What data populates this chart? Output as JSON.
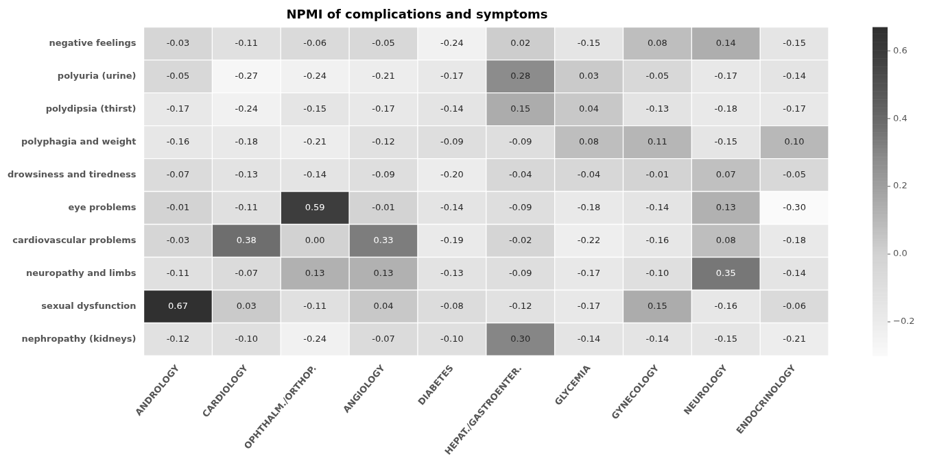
{
  "chart_data": {
    "type": "heatmap",
    "title": "NPMI of complications and symptoms",
    "categories": [
      "ANDROLOGY",
      "CARDIOLOGY",
      "OPHTHALM./ORTHOP.",
      "ANGIOLOGY",
      "DIABETES",
      "HEPAT./GASTROENTER.",
      "GLYCEMIA",
      "GYNECOLOGY",
      "NEUROLOGY",
      "ENDOCRINOLOGY"
    ],
    "y_categories": [
      "negative feelings",
      "polyuria (urine)",
      "polydipsia (thirst)",
      "polyphagia and weight",
      "drowsiness and tiredness",
      "eye problems",
      "cardiovascular problems",
      "neuropathy and limbs",
      "sexual dysfunction",
      "nephropathy (kidneys)"
    ],
    "cells": [
      [
        -0.03,
        -0.11,
        -0.06,
        -0.05,
        -0.24,
        0.02,
        -0.15,
        0.08,
        0.14,
        -0.15
      ],
      [
        -0.05,
        -0.27,
        -0.24,
        -0.21,
        -0.17,
        0.28,
        0.03,
        -0.05,
        -0.17,
        -0.14
      ],
      [
        -0.17,
        -0.24,
        -0.15,
        -0.17,
        -0.14,
        0.15,
        0.04,
        -0.13,
        -0.18,
        -0.17
      ],
      [
        -0.16,
        -0.18,
        -0.21,
        -0.12,
        -0.09,
        -0.09,
        0.08,
        0.11,
        -0.15,
        0.1
      ],
      [
        -0.07,
        -0.13,
        -0.14,
        -0.09,
        -0.2,
        -0.04,
        -0.04,
        -0.01,
        0.07,
        -0.05
      ],
      [
        -0.01,
        -0.11,
        0.59,
        -0.01,
        -0.14,
        -0.09,
        -0.18,
        -0.14,
        0.13,
        -0.3
      ],
      [
        -0.03,
        0.38,
        0.0,
        0.33,
        -0.19,
        -0.02,
        -0.22,
        -0.16,
        0.08,
        -0.18
      ],
      [
        -0.11,
        -0.07,
        0.13,
        0.13,
        -0.13,
        -0.09,
        -0.17,
        -0.1,
        0.35,
        -0.14
      ],
      [
        0.67,
        0.03,
        -0.11,
        0.04,
        -0.08,
        -0.12,
        -0.17,
        0.15,
        -0.16,
        -0.06
      ],
      [
        -0.12,
        -0.1,
        -0.24,
        -0.07,
        -0.1,
        0.3,
        -0.14,
        -0.14,
        -0.15,
        -0.21
      ]
    ],
    "cell_labels": [
      [
        "-0.03",
        "-0.11",
        "-0.06",
        "-0.05",
        "-0.24",
        "0.02",
        "-0.15",
        "0.08",
        "0.14",
        "-0.15"
      ],
      [
        "-0.05",
        "-0.27",
        "-0.24",
        "-0.21",
        "-0.17",
        "0.28",
        "0.03",
        "-0.05",
        "-0.17",
        "-0.14"
      ],
      [
        "-0.17",
        "-0.24",
        "-0.15",
        "-0.17",
        "-0.14",
        "0.15",
        "0.04",
        "-0.13",
        "-0.18",
        "-0.17"
      ],
      [
        "-0.16",
        "-0.18",
        "-0.21",
        "-0.12",
        "-0.09",
        "-0.09",
        "0.08",
        "0.11",
        "-0.15",
        "0.10"
      ],
      [
        "-0.07",
        "-0.13",
        "-0.14",
        "-0.09",
        "-0.20",
        "-0.04",
        "-0.04",
        "-0.01",
        "0.07",
        "-0.05"
      ],
      [
        "-0.01",
        "-0.11",
        "0.59",
        "-0.01",
        "-0.14",
        "-0.09",
        "-0.18",
        "-0.14",
        "0.13",
        "-0.30"
      ],
      [
        "-0.03",
        "0.38",
        "0.00",
        "0.33",
        "-0.19",
        "-0.02",
        "-0.22",
        "-0.16",
        "0.08",
        "-0.18"
      ],
      [
        "-0.11",
        "-0.07",
        "0.13",
        "0.13",
        "-0.13",
        "-0.09",
        "-0.17",
        "-0.10",
        "0.35",
        "-0.14"
      ],
      [
        "0.67",
        "0.03",
        "-0.11",
        "0.04",
        "-0.08",
        "-0.12",
        "-0.17",
        "0.15",
        "-0.16",
        "-0.06"
      ],
      [
        "-0.12",
        "-0.10",
        "-0.24",
        "-0.07",
        "-0.10",
        "0.30",
        "-0.14",
        "-0.14",
        "-0.15",
        "-0.21"
      ]
    ],
    "clim": [
      -0.3,
      0.67
    ],
    "cticks": [
      {
        "value": -0.2,
        "label": "−0.2"
      },
      {
        "value": 0.0,
        "label": "0.0"
      },
      {
        "value": 0.2,
        "label": "0.2"
      },
      {
        "value": 0.4,
        "label": "0.4"
      },
      {
        "value": 0.6,
        "label": "0.6"
      }
    ]
  }
}
